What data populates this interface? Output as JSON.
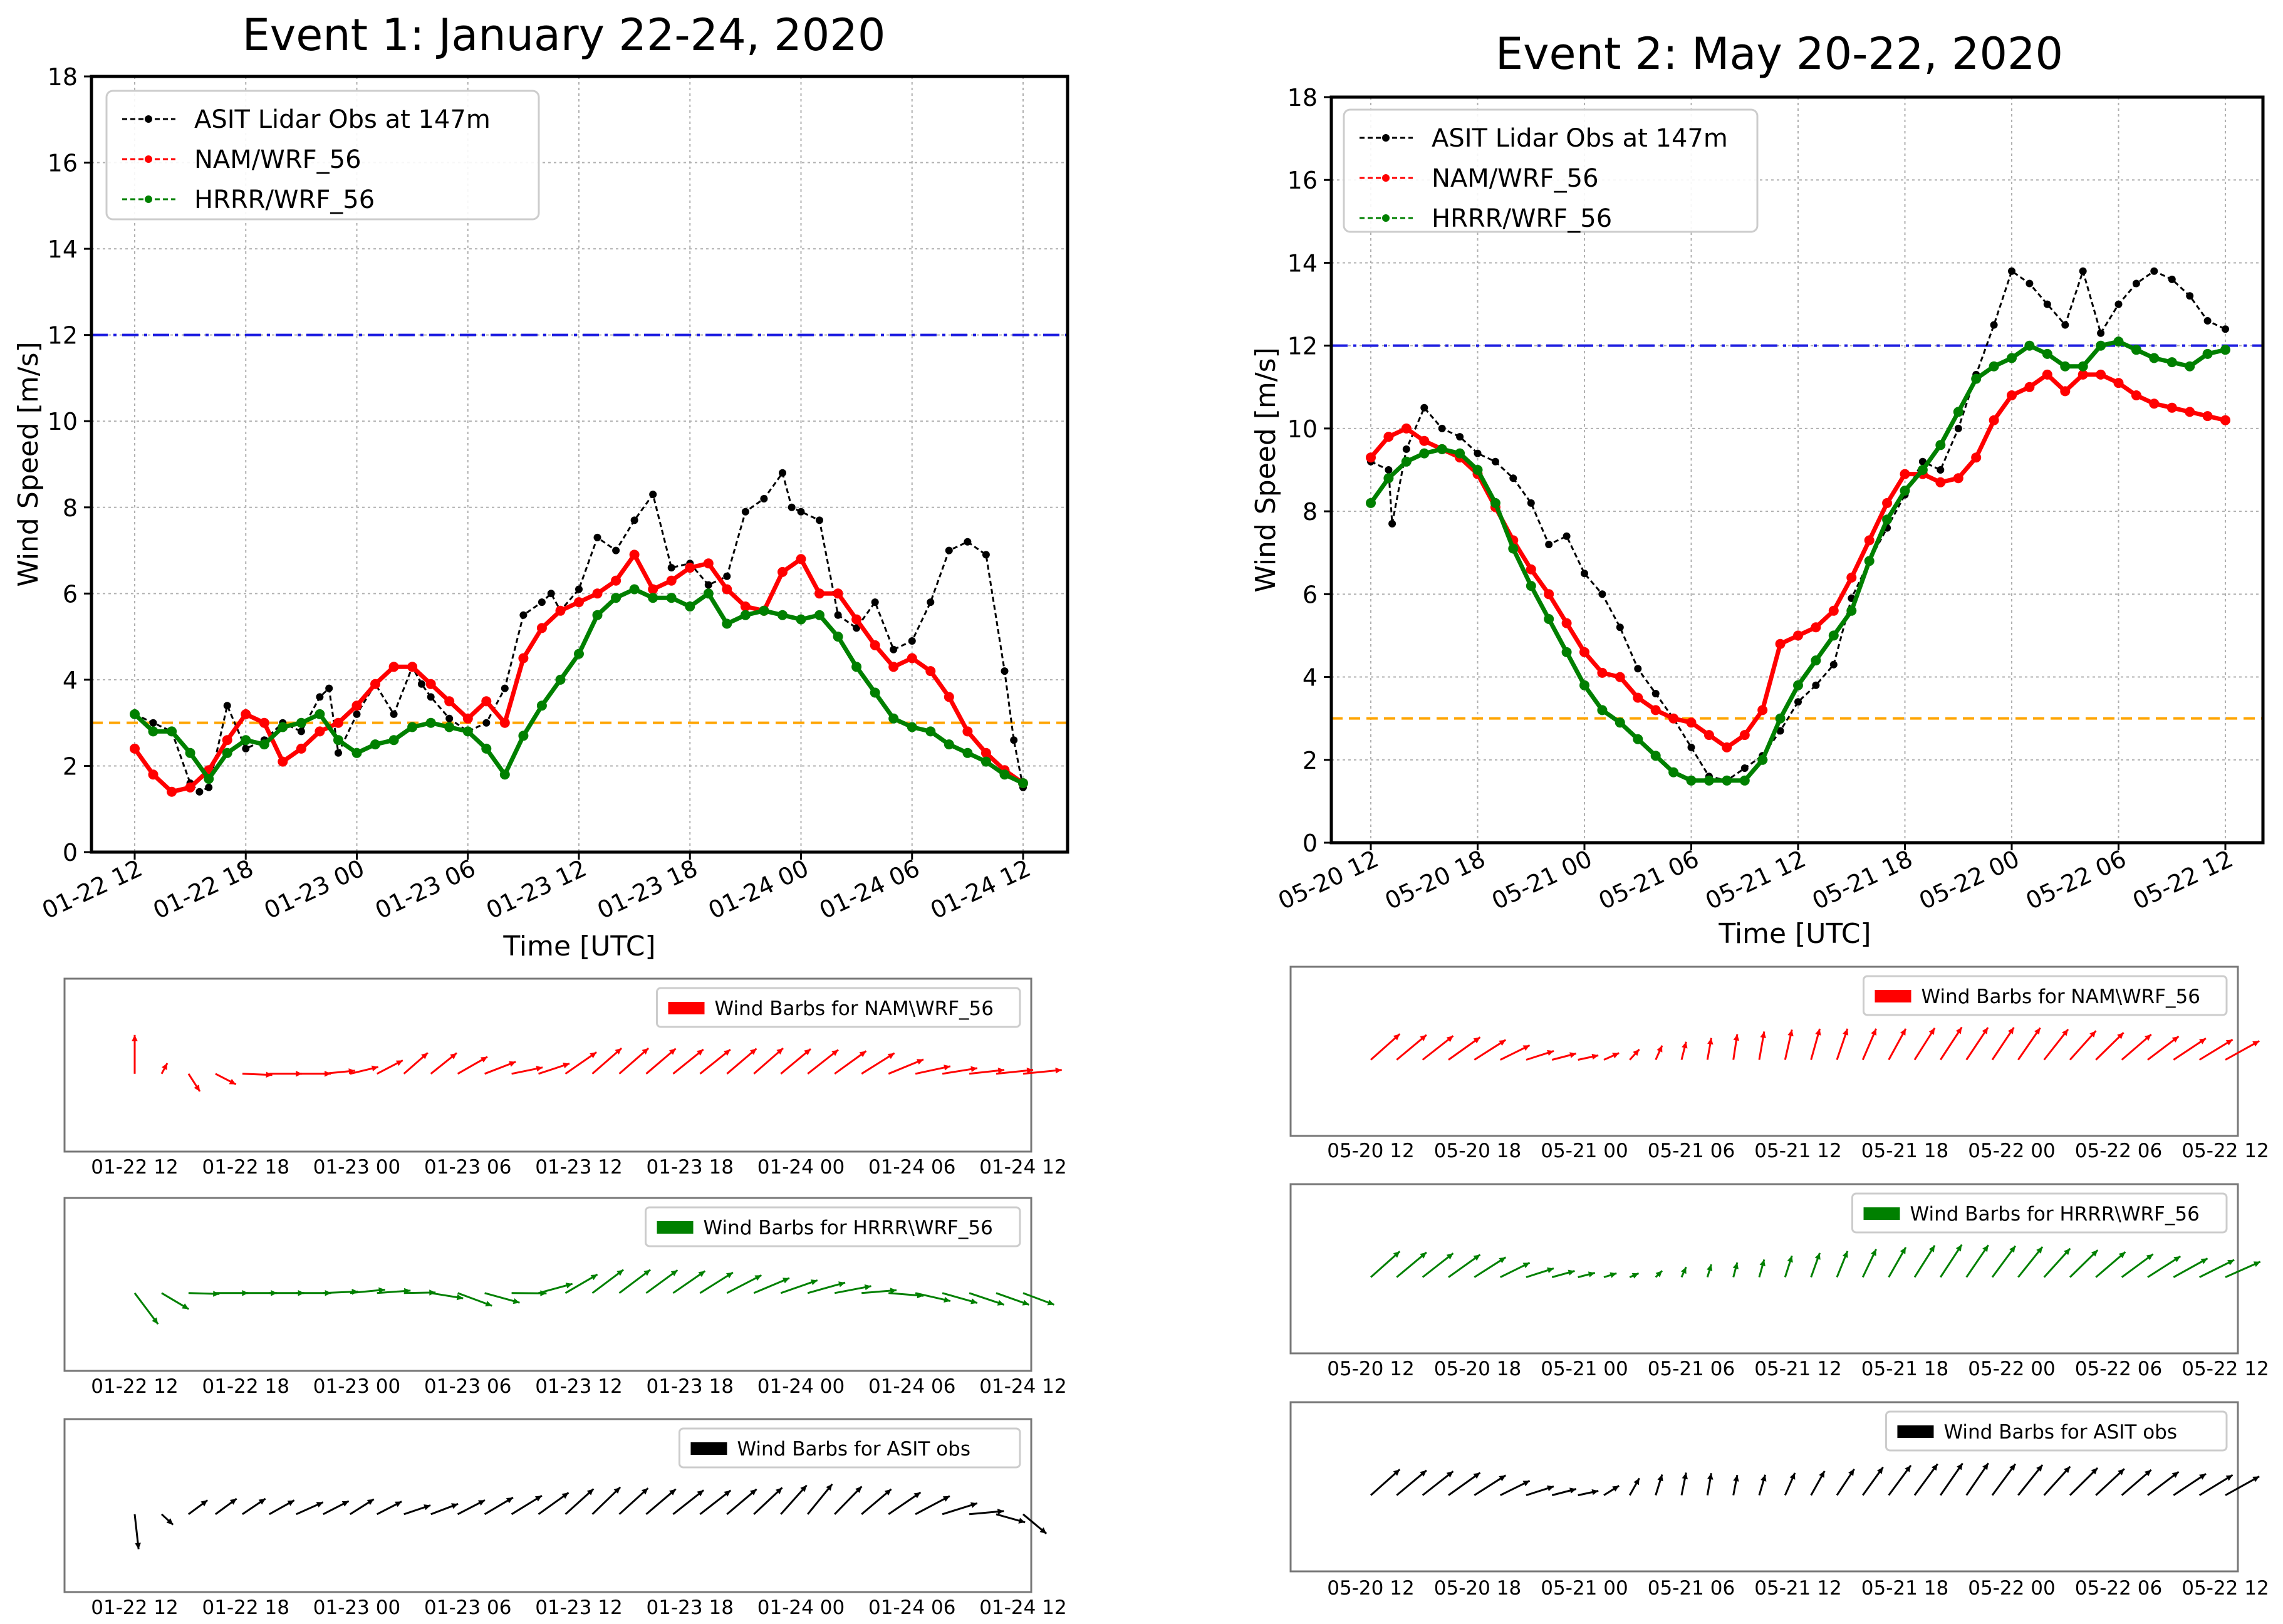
{
  "chart_data": [
    {
      "type": "line",
      "title": "Event 1: January 22-24, 2020",
      "xlabel": "Time [UTC]",
      "ylabel": "Wind Speed [m/s]",
      "ylim": [
        0,
        18
      ],
      "y_ticks": [
        "0",
        "2",
        "4",
        "6",
        "8",
        "10",
        "12",
        "14",
        "16",
        "18"
      ],
      "x_ticks": [
        "01-22 12",
        "01-22 18",
        "01-23 00",
        "01-23 06",
        "01-23 12",
        "01-23 18",
        "01-24 00",
        "01-24 06",
        "01-24 12"
      ],
      "x_range_hours": [
        0,
        48
      ],
      "grid": true,
      "legend_position": "top-left",
      "reference_lines": [
        {
          "value": 12,
          "style": "dashdot",
          "color": "#1c1ce0"
        },
        {
          "value": 3,
          "style": "dashed",
          "color": "#ffa500"
        }
      ],
      "series": [
        {
          "name": "ASIT Lidar Obs at 147m",
          "color": "#000000",
          "style": "dashed-dots",
          "x": [
            0,
            1,
            2,
            3,
            3.5,
            4,
            5,
            6,
            7,
            8,
            9,
            10,
            10.5,
            11,
            12,
            13,
            14,
            15,
            15.5,
            16,
            17,
            18,
            19,
            20,
            21,
            22,
            22.5,
            23,
            24,
            25,
            26,
            27,
            28,
            29,
            30,
            31,
            32,
            33,
            34,
            35,
            35.5,
            36,
            37,
            38,
            39,
            40,
            41,
            42,
            43,
            44,
            45,
            46,
            47,
            47.5,
            48
          ],
          "values": [
            3.2,
            3.0,
            2.8,
            1.6,
            1.4,
            1.5,
            3.4,
            2.4,
            2.6,
            3.0,
            2.8,
            3.6,
            3.8,
            2.3,
            3.2,
            3.9,
            3.2,
            4.3,
            3.9,
            3.6,
            3.1,
            2.8,
            3.0,
            3.8,
            5.5,
            5.8,
            6.0,
            5.6,
            6.1,
            7.3,
            7.0,
            7.7,
            8.3,
            6.6,
            6.7,
            6.2,
            6.4,
            7.9,
            8.2,
            8.8,
            8.0,
            7.9,
            7.7,
            5.5,
            5.2,
            5.8,
            4.7,
            4.9,
            5.8,
            7.0,
            7.2,
            6.9,
            4.2,
            2.6,
            1.5
          ]
        },
        {
          "name": "NAM/WRF_56",
          "color": "#ff0000",
          "style": "dashed-dots",
          "x": [
            0,
            1,
            2,
            3,
            4,
            5,
            6,
            7,
            8,
            9,
            10,
            11,
            12,
            13,
            14,
            15,
            16,
            17,
            18,
            19,
            20,
            21,
            22,
            23,
            24,
            25,
            26,
            27,
            28,
            29,
            30,
            31,
            32,
            33,
            34,
            35,
            36,
            37,
            38,
            39,
            40,
            41,
            42,
            43,
            44,
            45,
            46,
            47,
            48
          ],
          "values": [
            2.4,
            1.8,
            1.4,
            1.5,
            1.9,
            2.6,
            3.2,
            3.0,
            2.1,
            2.4,
            2.8,
            3.0,
            3.4,
            3.9,
            4.3,
            4.3,
            3.9,
            3.5,
            3.1,
            3.5,
            3.0,
            4.5,
            5.2,
            5.6,
            5.8,
            6.0,
            6.3,
            6.9,
            6.1,
            6.3,
            6.6,
            6.7,
            6.1,
            5.7,
            5.6,
            6.5,
            6.8,
            6.0,
            6.0,
            5.4,
            4.8,
            4.3,
            4.5,
            4.2,
            3.6,
            2.8,
            2.3,
            1.9,
            1.6
          ]
        },
        {
          "name": "HRRR/WRF_56",
          "color": "#008000",
          "style": "dashed-dots",
          "x": [
            0,
            1,
            2,
            3,
            4,
            5,
            6,
            7,
            8,
            9,
            10,
            11,
            12,
            13,
            14,
            15,
            16,
            17,
            18,
            19,
            20,
            21,
            22,
            23,
            24,
            25,
            26,
            27,
            28,
            29,
            30,
            31,
            32,
            33,
            34,
            35,
            36,
            37,
            38,
            39,
            40,
            41,
            42,
            43,
            44,
            45,
            46,
            47,
            48
          ],
          "values": [
            3.2,
            2.8,
            2.8,
            2.3,
            1.7,
            2.3,
            2.6,
            2.5,
            2.9,
            3.0,
            3.2,
            2.6,
            2.3,
            2.5,
            2.6,
            2.9,
            3.0,
            2.9,
            2.8,
            2.4,
            1.8,
            2.7,
            3.4,
            4.0,
            4.6,
            5.5,
            5.9,
            6.1,
            5.9,
            5.9,
            5.7,
            6.0,
            5.3,
            5.5,
            5.6,
            5.5,
            5.4,
            5.5,
            5.0,
            4.3,
            3.7,
            3.1,
            2.9,
            2.8,
            2.5,
            2.3,
            2.1,
            1.8,
            1.6
          ]
        }
      ]
    },
    {
      "type": "line",
      "title": "Event 2: May 20-22, 2020",
      "xlabel": "Time [UTC]",
      "ylabel": "Wind Speed [m/s]",
      "ylim": [
        0,
        18
      ],
      "y_ticks": [
        "0",
        "2",
        "4",
        "6",
        "8",
        "10",
        "12",
        "14",
        "16",
        "18"
      ],
      "x_ticks": [
        "05-20 12",
        "05-20 18",
        "05-21 00",
        "05-21 06",
        "05-21 12",
        "05-21 18",
        "05-22 00",
        "05-22 06",
        "05-22 12"
      ],
      "x_range_hours": [
        0,
        48
      ],
      "grid": true,
      "legend_position": "top-left",
      "reference_lines": [
        {
          "value": 12,
          "style": "dashdot",
          "color": "#1c1ce0"
        },
        {
          "value": 3,
          "style": "dashed",
          "color": "#ffa500"
        }
      ],
      "series": [
        {
          "name": "ASIT Lidar Obs at 147m",
          "color": "#000000",
          "style": "dashed-dots",
          "x": [
            0,
            1,
            1.2,
            2,
            3,
            4,
            5,
            6,
            7,
            8,
            9,
            10,
            11,
            12,
            13,
            14,
            15,
            16,
            17,
            18,
            19,
            20,
            21,
            22,
            23,
            24,
            25,
            26,
            27,
            28,
            29,
            30,
            31,
            32,
            33,
            34,
            35,
            36,
            37,
            38,
            39,
            40,
            41,
            42,
            43,
            44,
            45,
            46,
            47,
            48
          ],
          "values": [
            9.2,
            9.0,
            7.7,
            9.5,
            10.5,
            10.0,
            9.8,
            9.4,
            9.2,
            8.8,
            8.2,
            7.2,
            7.4,
            6.5,
            6.0,
            5.2,
            4.2,
            3.6,
            3.0,
            2.3,
            1.6,
            1.5,
            1.8,
            2.1,
            2.7,
            3.4,
            3.8,
            4.3,
            5.9,
            6.8,
            7.6,
            8.4,
            9.2,
            9.0,
            10.0,
            11.3,
            12.5,
            13.8,
            13.5,
            13.0,
            12.5,
            13.8,
            12.3,
            13.0,
            13.5,
            13.8,
            13.6,
            13.2,
            12.6,
            12.4
          ]
        },
        {
          "name": "NAM/WRF_56",
          "color": "#ff0000",
          "style": "dashed-dots",
          "x": [
            0,
            1,
            2,
            3,
            4,
            5,
            6,
            7,
            8,
            9,
            10,
            11,
            12,
            13,
            14,
            15,
            16,
            17,
            18,
            19,
            20,
            21,
            22,
            23,
            24,
            25,
            26,
            27,
            28,
            29,
            30,
            31,
            32,
            33,
            34,
            35,
            36,
            37,
            38,
            39,
            40,
            41,
            42,
            43,
            44,
            45,
            46,
            47,
            48
          ],
          "values": [
            9.3,
            9.8,
            10.0,
            9.7,
            9.5,
            9.3,
            8.9,
            8.1,
            7.3,
            6.6,
            6.0,
            5.3,
            4.6,
            4.1,
            4.0,
            3.5,
            3.2,
            3.0,
            2.9,
            2.6,
            2.3,
            2.6,
            3.2,
            4.8,
            5.0,
            5.2,
            5.6,
            6.4,
            7.3,
            8.2,
            8.9,
            8.9,
            8.7,
            8.8,
            9.3,
            10.2,
            10.8,
            11.0,
            11.3,
            10.9,
            11.3,
            11.3,
            11.1,
            10.8,
            10.6,
            10.5,
            10.4,
            10.3,
            10.2
          ]
        },
        {
          "name": "HRRR/WRF_56",
          "color": "#008000",
          "style": "dashed-dots",
          "x": [
            0,
            1,
            2,
            3,
            4,
            5,
            6,
            7,
            8,
            9,
            10,
            11,
            12,
            13,
            14,
            15,
            16,
            17,
            18,
            19,
            20,
            21,
            22,
            23,
            24,
            25,
            26,
            27,
            28,
            29,
            30,
            31,
            32,
            33,
            34,
            35,
            36,
            37,
            38,
            39,
            40,
            41,
            42,
            43,
            44,
            45,
            46,
            47,
            48
          ],
          "values": [
            8.2,
            8.8,
            9.2,
            9.4,
            9.5,
            9.4,
            9.0,
            8.2,
            7.1,
            6.2,
            5.4,
            4.6,
            3.8,
            3.2,
            2.9,
            2.5,
            2.1,
            1.7,
            1.5,
            1.5,
            1.5,
            1.5,
            2.0,
            3.0,
            3.8,
            4.4,
            5.0,
            5.6,
            6.8,
            7.8,
            8.5,
            9.0,
            9.6,
            10.4,
            11.2,
            11.5,
            11.7,
            12.0,
            11.8,
            11.5,
            11.5,
            12.0,
            12.1,
            11.9,
            11.7,
            11.6,
            11.5,
            11.8,
            11.9
          ]
        }
      ]
    },
    {
      "type": "quiver",
      "legend": "Wind Barbs for NAM\\WRF_56",
      "color": "#ff0000",
      "x_ticks": [
        "01-22 12",
        "01-22 18",
        "01-23 00",
        "01-23 06",
        "01-23 12",
        "01-23 18",
        "01-24 00",
        "01-24 06",
        "01-24 12"
      ],
      "arrows": {
        "x": [
          0,
          3,
          6,
          9,
          12,
          15,
          18,
          21,
          24,
          27,
          30,
          33,
          36,
          39,
          42,
          45,
          48
        ],
        "u": [
          0,
          0.3,
          0.8,
          0.9,
          0.7,
          0.6,
          0.8,
          0.8,
          0.8,
          0.8,
          0.9,
          0.9,
          1.0,
          0.9,
          0.9,
          0.9,
          1.0
        ],
        "v": [
          1.0,
          -0.5,
          0,
          0,
          0.2,
          0.6,
          0.4,
          0.1,
          0.7,
          0.7,
          0.7,
          0.8,
          0.8,
          0.6,
          0.2,
          0.1,
          0.1
        ]
      }
    },
    {
      "type": "quiver",
      "legend": "Wind Barbs for HRRR\\WRF_56",
      "color": "#008000",
      "x_ticks": [
        "01-22 12",
        "01-22 18",
        "01-23 00",
        "01-23 06",
        "01-23 12",
        "01-23 18",
        "01-24 00",
        "01-24 06",
        "01-24 12"
      ],
      "arrows": {
        "x": [
          0,
          3,
          6,
          9,
          12,
          15,
          18,
          21,
          24,
          27,
          30,
          33,
          36,
          39,
          42,
          45,
          48
        ],
        "u": [
          0.6,
          0.8,
          0.9,
          0.9,
          0.9,
          0.8,
          0.9,
          0.9,
          0.8,
          0.8,
          0.9,
          0.9,
          1.0,
          0.9,
          0.9,
          0.9,
          0.8
        ],
        "v": [
          -0.8,
          0,
          0,
          0,
          0.1,
          0,
          -0.4,
          0.1,
          0.6,
          0.6,
          0.6,
          0.4,
          0.3,
          0.1,
          -0.2,
          -0.3,
          -0.3
        ]
      }
    },
    {
      "type": "quiver",
      "legend": "Wind Barbs for ASIT obs",
      "color": "#000000",
      "x_ticks": [
        "01-22 12",
        "01-22 18",
        "01-23 00",
        "01-23 06",
        "01-23 12",
        "01-23 18",
        "01-24 00",
        "01-24 06",
        "01-24 12"
      ],
      "arrows": {
        "x": [
          0,
          3,
          6,
          9,
          12,
          15,
          18,
          21,
          24,
          27,
          30,
          33,
          36,
          39,
          42,
          45,
          48
        ],
        "u": [
          0.1,
          0.5,
          0.6,
          0.7,
          0.6,
          0.7,
          0.7,
          0.8,
          0.7,
          0.8,
          0.8,
          0.9,
          0.7,
          0.8,
          0.9,
          0.9,
          0.6
        ],
        "v": [
          -0.9,
          0.4,
          0.4,
          0.3,
          0.4,
          0.2,
          0.4,
          0.5,
          0.7,
          0.7,
          0.6,
          0.8,
          0.9,
          0.7,
          0.5,
          0.1,
          -0.5
        ]
      }
    },
    {
      "type": "quiver",
      "legend": "Wind Barbs for NAM\\WRF_56",
      "color": "#ff0000",
      "x_ticks": [
        "05-20 12",
        "05-20 18",
        "05-21 00",
        "05-21 06",
        "05-21 12",
        "05-21 18",
        "05-22 00",
        "05-22 06",
        "05-22 12"
      ],
      "arrows": {
        "x": [
          0,
          3,
          6,
          9,
          12,
          15,
          18,
          21,
          24,
          27,
          30,
          33,
          36,
          39,
          42,
          45,
          48
        ],
        "u": [
          0.9,
          0.9,
          0.8,
          0.7,
          0.5,
          0.2,
          0.1,
          0.1,
          0.2,
          0.3,
          0.5,
          0.6,
          0.6,
          0.7,
          0.8,
          0.9,
          0.9
        ],
        "v": [
          0.8,
          0.7,
          0.5,
          0.2,
          0.1,
          0.3,
          0.5,
          0.7,
          0.8,
          0.8,
          0.8,
          0.9,
          0.9,
          0.8,
          0.7,
          0.6,
          0.5
        ]
      }
    },
    {
      "type": "quiver",
      "legend": "Wind Barbs for HRRR\\WRF_56",
      "color": "#008000",
      "x_ticks": [
        "05-20 12",
        "05-20 18",
        "05-21 00",
        "05-21 06",
        "05-21 12",
        "05-21 18",
        "05-22 00",
        "05-22 06",
        "05-22 12"
      ],
      "arrows": {
        "x": [
          0,
          3,
          6,
          9,
          12,
          15,
          18,
          21,
          24,
          27,
          30,
          33,
          36,
          39,
          42,
          45,
          48
        ],
        "u": [
          0.9,
          0.9,
          0.8,
          0.7,
          0.4,
          0.2,
          0.1,
          0.1,
          0.2,
          0.3,
          0.5,
          0.6,
          0.7,
          0.8,
          0.8,
          0.9,
          0.9
        ],
        "v": [
          0.8,
          0.7,
          0.5,
          0.2,
          0.1,
          0.1,
          0.3,
          0.4,
          0.6,
          0.7,
          0.8,
          0.9,
          0.9,
          0.8,
          0.6,
          0.5,
          0.4
        ]
      }
    },
    {
      "type": "quiver",
      "legend": "Wind Barbs for ASIT obs",
      "color": "#000000",
      "x_ticks": [
        "05-20 12",
        "05-20 18",
        "05-21 00",
        "05-21 06",
        "05-21 12",
        "05-21 18",
        "05-22 00",
        "05-22 06",
        "05-22 12"
      ],
      "arrows": {
        "x": [
          0,
          3,
          6,
          9,
          12,
          15,
          18,
          21,
          24,
          27,
          30,
          33,
          36,
          39,
          42,
          45,
          48
        ],
        "u": [
          0.9,
          0.9,
          0.8,
          0.7,
          0.5,
          0.2,
          0.1,
          0.1,
          0.3,
          0.5,
          0.6,
          0.6,
          0.7,
          0.8,
          0.8,
          0.9,
          0.9
        ],
        "v": [
          0.8,
          0.7,
          0.5,
          0.2,
          0.1,
          0.5,
          0.6,
          0.5,
          0.6,
          0.7,
          0.8,
          0.9,
          0.9,
          0.8,
          0.7,
          0.6,
          0.5
        ]
      }
    }
  ]
}
